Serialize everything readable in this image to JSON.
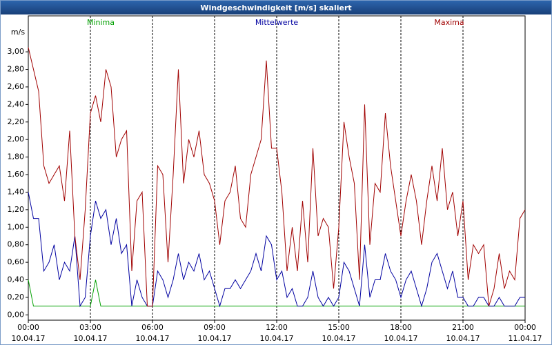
{
  "chart_data": {
    "type": "line",
    "title": "Windgeschwindigkeit [m/s] skaliert",
    "y_label": "m/s",
    "x": [
      0,
      0.25,
      0.5,
      0.75,
      1,
      1.25,
      1.5,
      1.75,
      2,
      2.25,
      2.5,
      2.75,
      3,
      3.25,
      3.5,
      3.75,
      4,
      4.25,
      4.5,
      4.75,
      5,
      5.25,
      5.5,
      5.75,
      6,
      6.25,
      6.5,
      6.75,
      7,
      7.25,
      7.5,
      7.75,
      8,
      8.25,
      8.5,
      8.75,
      9,
      9.25,
      9.5,
      9.75,
      10,
      10.25,
      10.5,
      10.75,
      11,
      11.25,
      11.5,
      11.75,
      12,
      12.25,
      12.5,
      12.75,
      13,
      13.25,
      13.5,
      13.75,
      14,
      14.25,
      14.5,
      14.75,
      15,
      15.25,
      15.5,
      15.75,
      16,
      16.25,
      16.5,
      16.75,
      17,
      17.25,
      17.5,
      17.75,
      18,
      18.25,
      18.5,
      18.75,
      19,
      19.25,
      19.5,
      19.75,
      20,
      20.25,
      20.5,
      20.75,
      21,
      21.25,
      21.5,
      21.75,
      22,
      22.25,
      22.5,
      22.75,
      23,
      23.25,
      23.5,
      23.75,
      24
    ],
    "series": [
      {
        "name": "Minima",
        "color": "#00a000",
        "legend_pos": "left",
        "values": [
          0.4,
          0.1,
          0.1,
          0.1,
          0.1,
          0.1,
          0.1,
          0.1,
          0.1,
          0.1,
          0.1,
          0.1,
          0.1,
          0.4,
          0.1,
          0.1,
          0.1,
          0.1,
          0.1,
          0.1,
          0.1,
          0.1,
          0.1,
          0.1,
          0.1,
          0.1,
          0.1,
          0.1,
          0.1,
          0.1,
          0.1,
          0.1,
          0.1,
          0.1,
          0.1,
          0.1,
          0.1,
          0.1,
          0.1,
          0.1,
          0.1,
          0.1,
          0.1,
          0.1,
          0.1,
          0.1,
          0.1,
          0.1,
          0.1,
          0.1,
          0.1,
          0.1,
          0.1,
          0.1,
          0.1,
          0.1,
          0.1,
          0.1,
          0.1,
          0.1,
          0.1,
          0.1,
          0.1,
          0.1,
          0.1,
          0.1,
          0.1,
          0.1,
          0.1,
          0.1,
          0.1,
          0.1,
          0.1,
          0.1,
          0.1,
          0.1,
          0.1,
          0.1,
          0.1,
          0.1,
          0.1,
          0.1,
          0.1,
          0.1,
          0.1,
          0.1,
          0.1,
          0.1,
          0.1,
          0.1,
          0.1,
          0.1,
          0.1,
          0.1,
          0.1,
          0.1,
          0.1
        ]
      },
      {
        "name": "Mittelwerte",
        "color": "#0000a0",
        "legend_pos": "center",
        "values": [
          1.4,
          1.1,
          1.1,
          0.5,
          0.6,
          0.8,
          0.4,
          0.6,
          0.5,
          0.9,
          0.1,
          0.2,
          0.9,
          1.3,
          1.1,
          1.2,
          0.8,
          1.1,
          0.7,
          0.8,
          0.1,
          0.4,
          0.2,
          0.1,
          0.1,
          0.5,
          0.4,
          0.2,
          0.4,
          0.7,
          0.4,
          0.6,
          0.5,
          0.7,
          0.4,
          0.5,
          0.3,
          0.1,
          0.3,
          0.3,
          0.4,
          0.3,
          0.4,
          0.5,
          0.7,
          0.5,
          0.9,
          0.8,
          0.4,
          0.5,
          0.2,
          0.3,
          0.1,
          0.1,
          0.2,
          0.5,
          0.2,
          0.1,
          0.2,
          0.1,
          0.2,
          0.6,
          0.5,
          0.3,
          0.1,
          0.8,
          0.2,
          0.4,
          0.4,
          0.7,
          0.5,
          0.4,
          0.2,
          0.4,
          0.5,
          0.3,
          0.1,
          0.3,
          0.6,
          0.7,
          0.5,
          0.3,
          0.5,
          0.2,
          0.2,
          0.1,
          0.1,
          0.2,
          0.2,
          0.1,
          0.1,
          0.2,
          0.1,
          0.1,
          0.1,
          0.2,
          0.2
        ]
      },
      {
        "name": "Maxima",
        "color": "#a00000",
        "legend_pos": "right",
        "values": [
          3.05,
          2.8,
          2.55,
          1.7,
          1.5,
          1.6,
          1.7,
          1.3,
          2.1,
          0.9,
          0.4,
          1.2,
          2.3,
          2.5,
          2.2,
          2.8,
          2.6,
          1.8,
          2.0,
          2.1,
          0.5,
          1.3,
          1.4,
          0.1,
          0.1,
          1.7,
          1.6,
          0.6,
          1.6,
          2.8,
          1.5,
          2.0,
          1.8,
          2.1,
          1.6,
          1.5,
          1.3,
          0.8,
          1.3,
          1.4,
          1.7,
          1.1,
          1.0,
          1.6,
          1.8,
          2.0,
          2.9,
          1.9,
          1.9,
          1.4,
          0.5,
          1.0,
          0.5,
          1.3,
          0.6,
          1.9,
          0.9,
          1.1,
          1.0,
          0.3,
          1.0,
          2.2,
          1.8,
          1.5,
          0.4,
          2.4,
          0.8,
          1.5,
          1.4,
          2.3,
          1.7,
          1.3,
          0.9,
          1.3,
          1.6,
          1.3,
          0.8,
          1.3,
          1.7,
          1.3,
          1.9,
          1.2,
          1.4,
          0.9,
          1.3,
          0.4,
          0.8,
          0.7,
          0.8,
          0.1,
          0.3,
          0.7,
          0.3,
          0.5,
          0.4,
          1.1,
          1.2
        ]
      }
    ],
    "xlim": [
      0,
      24
    ],
    "xticks": [
      {
        "value": 0,
        "label": "00:00 10.04.17"
      },
      {
        "value": 3,
        "label": "03:00 10.04.17"
      },
      {
        "value": 6,
        "label": "06:00 10.04.17"
      },
      {
        "value": 9,
        "label": "09:00 10.04.17"
      },
      {
        "value": 12,
        "label": "12:00 10.04.17"
      },
      {
        "value": 15,
        "label": "15:00 10.04.17"
      },
      {
        "value": 18,
        "label": "18:00 10.04.17"
      },
      {
        "value": 21,
        "label": "21:00 10.04.17"
      },
      {
        "value": 24,
        "label": "00:00 11.04.17"
      }
    ],
    "ylim": [
      -0.06,
      3.41
    ],
    "yticks": [
      {
        "value": 0,
        "label": "0,00"
      },
      {
        "value": 0.2,
        "label": "0,20"
      },
      {
        "value": 0.4,
        "label": "0,40"
      },
      {
        "value": 0.6,
        "label": "0,60"
      },
      {
        "value": 0.8,
        "label": "0,80"
      },
      {
        "value": 1,
        "label": "1,00"
      },
      {
        "value": 1.2,
        "label": "1,20"
      },
      {
        "value": 1.4,
        "label": "1,40"
      },
      {
        "value": 1.6,
        "label": "1,60"
      },
      {
        "value": 1.8,
        "label": "1,80"
      },
      {
        "value": 2,
        "label": "2,00"
      },
      {
        "value": 2.2,
        "label": "2,20"
      },
      {
        "value": 2.4,
        "label": "2,40"
      },
      {
        "value": 2.6,
        "label": "2,60"
      },
      {
        "value": 2.8,
        "label": "2,80"
      },
      {
        "value": 3,
        "label": "3,00"
      }
    ],
    "grid": "x"
  }
}
